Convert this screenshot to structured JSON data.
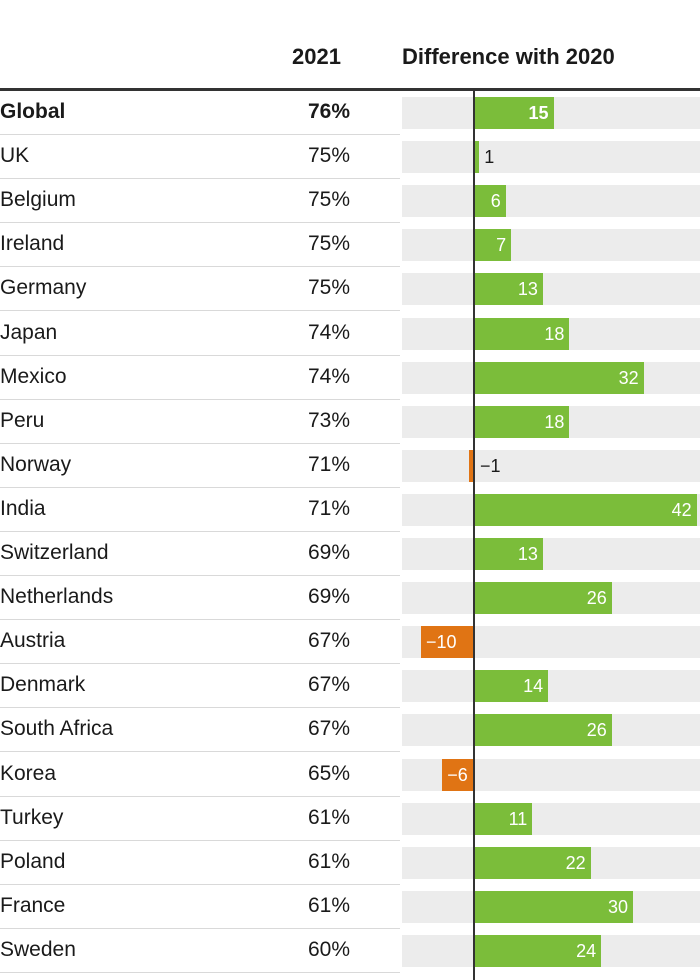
{
  "header": {
    "year_label": "2021",
    "diff_label": "Difference with 2020"
  },
  "colors": {
    "positive": "#7bbd3a",
    "negative": "#e07414",
    "track": "#ececec"
  },
  "chart_data": {
    "type": "bar",
    "orientation": "horizontal",
    "columns": [
      "2021",
      "Difference with 2020"
    ],
    "categories": [
      "Global",
      "UK",
      "Belgium",
      "Ireland",
      "Germany",
      "Japan",
      "Mexico",
      "Peru",
      "Norway",
      "India",
      "Switzerland",
      "Netherlands",
      "Austria",
      "Denmark",
      "South Africa",
      "Korea",
      "Turkey",
      "Poland",
      "France",
      "Sweden"
    ],
    "percent_2021": [
      "76%",
      "75%",
      "75%",
      "75%",
      "75%",
      "74%",
      "74%",
      "73%",
      "71%",
      "71%",
      "69%",
      "69%",
      "67%",
      "67%",
      "67%",
      "65%",
      "61%",
      "61%",
      "61%",
      "60%"
    ],
    "values": [
      15,
      1,
      6,
      7,
      13,
      18,
      32,
      18,
      -1,
      42,
      13,
      26,
      -10,
      14,
      26,
      -6,
      11,
      22,
      30,
      24
    ],
    "value_labels": [
      "15",
      "1",
      "6",
      "7",
      "13",
      "18",
      "32",
      "18",
      "−1",
      "42",
      "13",
      "26",
      "−10",
      "14",
      "26",
      "−6",
      "11",
      "22",
      "30",
      "24"
    ],
    "xlim": [
      -14,
      44
    ],
    "highlight_row": "Global"
  }
}
